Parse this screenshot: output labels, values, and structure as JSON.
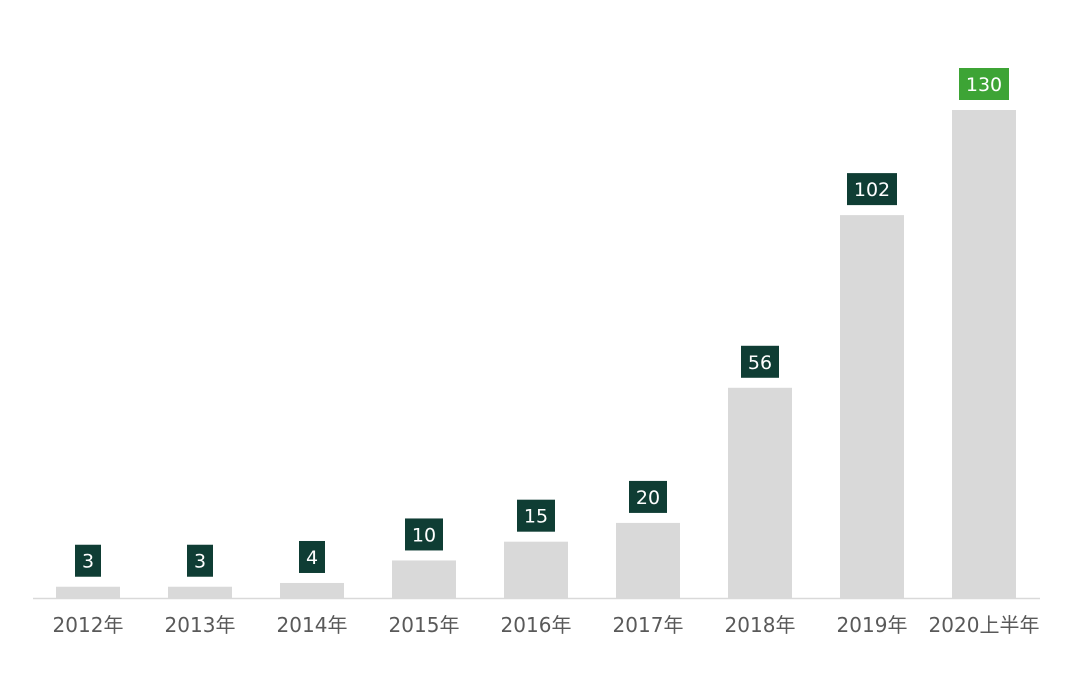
{
  "colors": {
    "bar": "#d9d9d9",
    "label_bg": "#0f3d34",
    "label_bg_highlight": "#3da435",
    "label_text": "#ffffff",
    "tick_text": "#595959",
    "axis": "#d9d9d9"
  },
  "chart_data": {
    "type": "bar",
    "title": "",
    "xlabel": "",
    "ylabel": "",
    "categories": [
      "2012年",
      "2013年",
      "2014年",
      "2015年",
      "2016年",
      "2017年",
      "2018年",
      "2019年",
      "2020上半年"
    ],
    "values": [
      3,
      3,
      4,
      10,
      15,
      20,
      56,
      102,
      130
    ],
    "value_labels": [
      "3",
      "3",
      "4",
      "10",
      "15",
      "20",
      "56",
      "102",
      "130"
    ],
    "highlight_index": 8,
    "ylim": [
      0,
      130
    ],
    "grid": false,
    "legend": "none"
  }
}
